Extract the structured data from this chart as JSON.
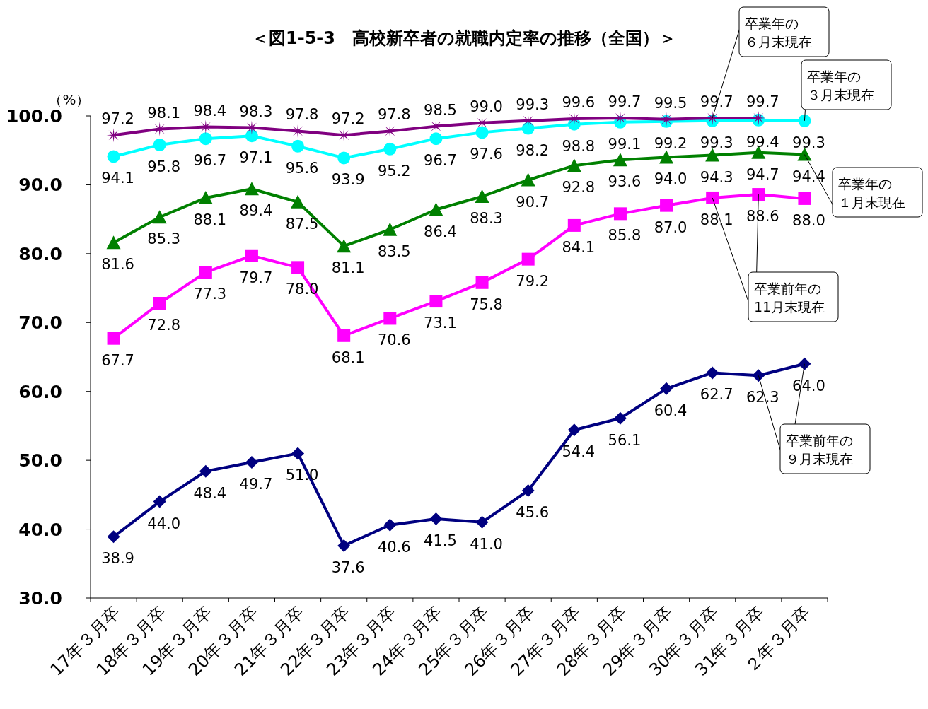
{
  "chart_data": {
    "type": "line",
    "title": "＜図1-5-3　高校新卒者の就職内定率の推移（全国）＞",
    "ylabel": "（%）",
    "categories": [
      "17年３月卒",
      "18年３月卒",
      "19年３月卒",
      "20年３月卒",
      "21年３月卒",
      "22年３月卒",
      "23年３月卒",
      "24年３月卒",
      "25年３月卒",
      "26年３月卒",
      "27年３月卒",
      "28年３月卒",
      "29年３月卒",
      "30年３月卒",
      "31年３月卒",
      "２年３月卒"
    ],
    "ylim": [
      30,
      100
    ],
    "yticks": [
      {
        "value": 30,
        "label": "30.0"
      },
      {
        "value": 40,
        "label": "40.0"
      },
      {
        "value": 50,
        "label": "50.0"
      },
      {
        "value": 60,
        "label": "60.0"
      },
      {
        "value": 70,
        "label": "70.0"
      },
      {
        "value": 80,
        "label": "80.0"
      },
      {
        "value": 90,
        "label": "90.0"
      },
      {
        "value": 100,
        "label": "100.0"
      }
    ],
    "series": [
      {
        "name": "卒業前年の９月末現在",
        "color": "#000080",
        "marker": "diamond",
        "values": [
          38.9,
          44.0,
          48.4,
          49.7,
          51.0,
          37.6,
          40.6,
          41.5,
          41.0,
          45.6,
          54.4,
          56.1,
          60.4,
          62.7,
          62.3,
          64.0
        ],
        "value_labels": [
          "38.9",
          "44.0",
          "48.4",
          "49.7",
          "51.0",
          "37.6",
          "40.6",
          "41.5",
          "41.0",
          "45.6",
          "54.4",
          "56.1",
          "60.4",
          "62.7",
          "62.3",
          "64.0"
        ]
      },
      {
        "name": "卒業前年の11月末現在",
        "color": "#ff00ff",
        "marker": "square",
        "values": [
          67.7,
          72.8,
          77.3,
          79.7,
          78.0,
          68.1,
          70.6,
          73.1,
          75.8,
          79.2,
          84.1,
          85.8,
          87.0,
          88.1,
          88.6,
          88.0
        ],
        "value_labels": [
          "67.7",
          "72.8",
          "77.3",
          "79.7",
          "78.0",
          "68.1",
          "70.6",
          "73.1",
          "75.8",
          "79.2",
          "84.1",
          "85.8",
          "87.0",
          "88.1",
          "88.6",
          "88.0"
        ]
      },
      {
        "name": "卒業年の１月末現在",
        "color": "#008000",
        "marker": "triangle",
        "values": [
          81.6,
          85.3,
          88.1,
          89.4,
          87.5,
          81.1,
          83.5,
          86.4,
          88.3,
          90.7,
          92.8,
          93.6,
          94.0,
          94.3,
          94.7,
          94.4
        ],
        "value_labels": [
          "81.6",
          "85.3",
          "88.1",
          "89.4",
          "87.5",
          "81.1",
          "83.5",
          "86.4",
          "88.3",
          "90.7",
          "92.8",
          "93.6",
          "94.0",
          "94.3",
          "94.7",
          "94.4"
        ]
      },
      {
        "name": "卒業年の３月末現在",
        "color": "#00ffff",
        "marker": "circle",
        "values": [
          94.1,
          95.8,
          96.7,
          97.1,
          95.6,
          93.9,
          95.2,
          96.7,
          97.6,
          98.2,
          98.8,
          99.1,
          99.2,
          99.3,
          99.4,
          99.3
        ],
        "value_labels": [
          "94.1",
          "95.8",
          "96.7",
          "97.1",
          "95.6",
          "93.9",
          "95.2",
          "96.7",
          "97.6",
          "98.2",
          "98.8",
          "99.1",
          "99.2",
          "99.3",
          "99.4",
          "99.3"
        ]
      },
      {
        "name": "卒業年の６月末現在",
        "color": "#800080",
        "marker": "star",
        "values": [
          97.2,
          98.1,
          98.4,
          98.3,
          97.8,
          97.2,
          97.8,
          98.5,
          99.0,
          99.3,
          99.6,
          99.7,
          99.5,
          99.7,
          99.7,
          null
        ],
        "value_labels": [
          "97.2",
          "98.1",
          "98.4",
          "98.3",
          "97.8",
          "97.2",
          "97.8",
          "98.5",
          "99.0",
          "99.3",
          "99.6",
          "99.7",
          "99.5",
          "99.7",
          "99.7",
          null
        ]
      }
    ]
  }
}
